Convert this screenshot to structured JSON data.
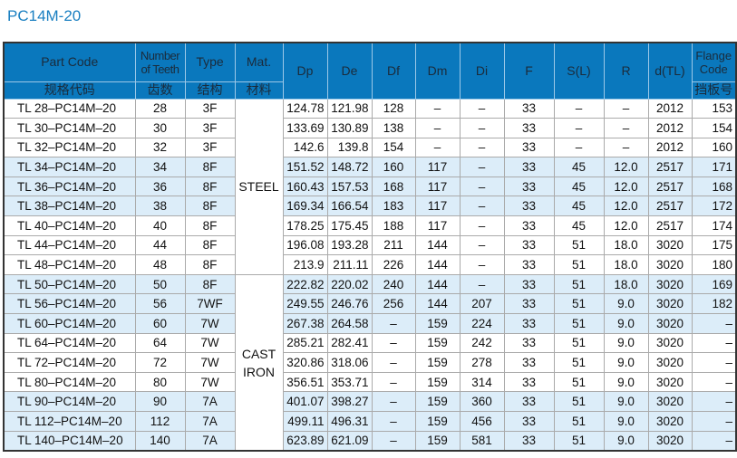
{
  "title": "PC14M-20",
  "headers": {
    "part_code": "Part Code",
    "part_code_cn": "规格代码",
    "teeth": "Number of Teeth",
    "teeth_cn": "齿数",
    "type": "Type",
    "type_cn": "结构",
    "mat": "Mat.",
    "mat_cn": "材料",
    "dp": "Dp",
    "de": "De",
    "df": "Df",
    "dm": "Dm",
    "di": "Di",
    "f": "F",
    "sl": "S(L)",
    "r": "R",
    "dtl": "d(TL)",
    "flange": "Flange Code",
    "flange_cn": "挡板号"
  },
  "materials": [
    "STEEL",
    "CAST IRON"
  ],
  "colors": {
    "header": "#0a78bd",
    "shade": "#dcedf9",
    "title": "#1a7fc1"
  },
  "rows": [
    [
      "TL 28–PC14M–20",
      "28",
      "3F",
      "124.78",
      "121.98",
      "128",
      "–",
      "–",
      "33",
      "–",
      "–",
      "2012",
      "153"
    ],
    [
      "TL 30–PC14M–20",
      "30",
      "3F",
      "133.69",
      "130.89",
      "138",
      "–",
      "–",
      "33",
      "–",
      "–",
      "2012",
      "154"
    ],
    [
      "TL 32–PC14M–20",
      "32",
      "3F",
      "142.6",
      "139.8",
      "154",
      "–",
      "–",
      "33",
      "–",
      "–",
      "2012",
      "160"
    ],
    [
      "TL 34–PC14M–20",
      "34",
      "8F",
      "151.52",
      "148.72",
      "160",
      "117",
      "–",
      "33",
      "45",
      "12.0",
      "2517",
      "171"
    ],
    [
      "TL 36–PC14M–20",
      "36",
      "8F",
      "160.43",
      "157.53",
      "168",
      "117",
      "–",
      "33",
      "45",
      "12.0",
      "2517",
      "168"
    ],
    [
      "TL 38–PC14M–20",
      "38",
      "8F",
      "169.34",
      "166.54",
      "183",
      "117",
      "–",
      "33",
      "45",
      "12.0",
      "2517",
      "172"
    ],
    [
      "TL 40–PC14M–20",
      "40",
      "8F",
      "178.25",
      "175.45",
      "188",
      "117",
      "–",
      "33",
      "45",
      "12.0",
      "2517",
      "174"
    ],
    [
      "TL 44–PC14M–20",
      "44",
      "8F",
      "196.08",
      "193.28",
      "211",
      "144",
      "–",
      "33",
      "51",
      "18.0",
      "3020",
      "175"
    ],
    [
      "TL 48–PC14M–20",
      "48",
      "8F",
      "213.9",
      "211.11",
      "226",
      "144",
      "–",
      "33",
      "51",
      "18.0",
      "3020",
      "180"
    ],
    [
      "TL 50–PC14M–20",
      "50",
      "8F",
      "222.82",
      "220.02",
      "240",
      "144",
      "–",
      "33",
      "51",
      "18.0",
      "3020",
      "169"
    ],
    [
      "TL 56–PC14M–20",
      "56",
      "7WF",
      "249.55",
      "246.76",
      "256",
      "144",
      "207",
      "33",
      "51",
      "9.0",
      "3020",
      "182"
    ],
    [
      "TL 60–PC14M–20",
      "60",
      "7W",
      "267.38",
      "264.58",
      "–",
      "159",
      "224",
      "33",
      "51",
      "9.0",
      "3020",
      "–"
    ],
    [
      "TL 64–PC14M–20",
      "64",
      "7W",
      "285.21",
      "282.41",
      "–",
      "159",
      "242",
      "33",
      "51",
      "9.0",
      "3020",
      "–"
    ],
    [
      "TL 72–PC14M–20",
      "72",
      "7W",
      "320.86",
      "318.06",
      "–",
      "159",
      "278",
      "33",
      "51",
      "9.0",
      "3020",
      "–"
    ],
    [
      "TL 80–PC14M–20",
      "80",
      "7W",
      "356.51",
      "353.71",
      "–",
      "159",
      "314",
      "33",
      "51",
      "9.0",
      "3020",
      "–"
    ],
    [
      "TL 90–PC14M–20",
      "90",
      "7A",
      "401.07",
      "398.27",
      "–",
      "159",
      "360",
      "33",
      "51",
      "9.0",
      "3020",
      "–"
    ],
    [
      "TL 112–PC14M–20",
      "112",
      "7A",
      "499.11",
      "496.31",
      "–",
      "159",
      "456",
      "33",
      "51",
      "9.0",
      "3020",
      "–"
    ],
    [
      "TL 140–PC14M–20",
      "140",
      "7A",
      "623.89",
      "621.09",
      "–",
      "159",
      "581",
      "33",
      "51",
      "9.0",
      "3020",
      "–"
    ]
  ]
}
